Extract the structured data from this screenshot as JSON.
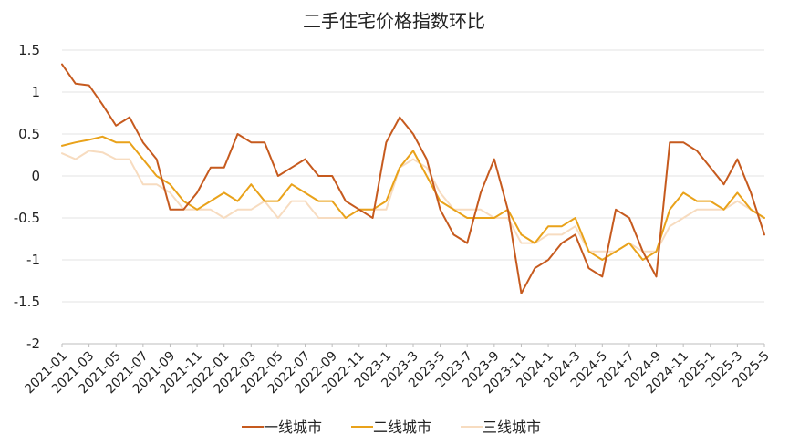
{
  "chart_data": {
    "type": "line",
    "title": "二手住宅价格指数环比",
    "xlabel": "",
    "ylabel": "",
    "ylim": [
      -2,
      1.5
    ],
    "yticks": [
      "1.5",
      "1",
      "0.5",
      "0",
      "-0.5",
      "-1",
      "-1.5",
      "-2"
    ],
    "ytick_values": [
      1.5,
      1,
      0.5,
      0,
      -0.5,
      -1,
      -1.5,
      -2
    ],
    "grid": true,
    "legend_position": "bottom",
    "categories": [
      "2021-01",
      "2021-02",
      "2021-03",
      "2021-04",
      "2021-05",
      "2021-06",
      "2021-07",
      "2021-08",
      "2021-09",
      "2021-10",
      "2021-11",
      "2021-12",
      "2022-01",
      "2022-02",
      "2022-03",
      "2022-04",
      "2022-05",
      "2022-06",
      "2022-07",
      "2022-08",
      "2022-09",
      "2022-10",
      "2022-11",
      "2022-12",
      "2023-1",
      "2023-2",
      "2023-3",
      "2023-4",
      "2023-5",
      "2023-6",
      "2023-7",
      "2023-8",
      "2023-9",
      "2023-10",
      "2023-11",
      "2023-12",
      "2024-1",
      "2024-2",
      "2024-3",
      "2024-4",
      "2024-5",
      "2024-6",
      "2024-7",
      "2024-8",
      "2024-9",
      "2024-10",
      "2024-11",
      "2024-12",
      "2025-1",
      "2025-2",
      "2025-3",
      "2025-4",
      "2025-5"
    ],
    "x_tick_labels": [
      "2021-01",
      "2021-03",
      "2021-05",
      "2021-07",
      "2021-09",
      "2021-11",
      "2022-01",
      "2022-03",
      "2022-05",
      "2022-07",
      "2022-09",
      "2022-11",
      "2023-1",
      "2023-3",
      "2023-5",
      "2023-7",
      "2023-9",
      "2023-11",
      "2024-1",
      "2024-3",
      "2024-5",
      "2024-7",
      "2024-9",
      "2024-11",
      "2025-1",
      "2025-3",
      "2025-5"
    ],
    "series": [
      {
        "name": "一线城市",
        "color": "#c65a1e",
        "values": [
          1.33,
          1.1,
          1.08,
          0.85,
          0.6,
          0.7,
          0.4,
          0.2,
          -0.4,
          -0.4,
          -0.2,
          0.1,
          0.1,
          0.5,
          0.4,
          0.4,
          0.0,
          0.1,
          0.2,
          0.0,
          0.0,
          -0.3,
          -0.4,
          -0.5,
          0.4,
          0.7,
          0.5,
          0.2,
          -0.4,
          -0.7,
          -0.8,
          -0.2,
          0.2,
          -0.4,
          -1.4,
          -1.1,
          -1.0,
          -0.8,
          -0.7,
          -1.1,
          -1.2,
          -0.4,
          -0.5,
          -0.9,
          -1.2,
          0.4,
          0.4,
          0.3,
          0.1,
          -0.1,
          0.2,
          -0.2,
          -0.7
        ]
      },
      {
        "name": "二线城市",
        "color": "#e9a21a",
        "values": [
          0.36,
          0.4,
          0.43,
          0.47,
          0.4,
          0.4,
          0.2,
          0.0,
          -0.1,
          -0.3,
          -0.4,
          -0.3,
          -0.2,
          -0.3,
          -0.1,
          -0.3,
          -0.3,
          -0.1,
          -0.2,
          -0.3,
          -0.3,
          -0.5,
          -0.4,
          -0.4,
          -0.3,
          0.1,
          0.3,
          0.0,
          -0.3,
          -0.4,
          -0.5,
          -0.5,
          -0.5,
          -0.4,
          -0.7,
          -0.8,
          -0.6,
          -0.6,
          -0.5,
          -0.9,
          -1.0,
          -0.9,
          -0.8,
          -1.0,
          -0.9,
          -0.4,
          -0.2,
          -0.3,
          -0.3,
          -0.4,
          -0.2,
          -0.4,
          -0.5
        ]
      },
      {
        "name": "三线城市",
        "color": "#f7dcc0",
        "values": [
          0.27,
          0.2,
          0.3,
          0.28,
          0.2,
          0.2,
          -0.1,
          -0.1,
          -0.2,
          -0.4,
          -0.4,
          -0.4,
          -0.5,
          -0.4,
          -0.4,
          -0.3,
          -0.5,
          -0.3,
          -0.3,
          -0.5,
          -0.5,
          -0.5,
          -0.4,
          -0.4,
          -0.4,
          0.1,
          0.2,
          0.1,
          -0.2,
          -0.4,
          -0.4,
          -0.4,
          -0.5,
          -0.5,
          -0.8,
          -0.8,
          -0.7,
          -0.7,
          -0.6,
          -0.9,
          -0.9,
          -0.9,
          -0.8,
          -0.9,
          -0.9,
          -0.6,
          -0.5,
          -0.4,
          -0.4,
          -0.4,
          -0.3,
          -0.4,
          -0.5
        ]
      }
    ]
  }
}
